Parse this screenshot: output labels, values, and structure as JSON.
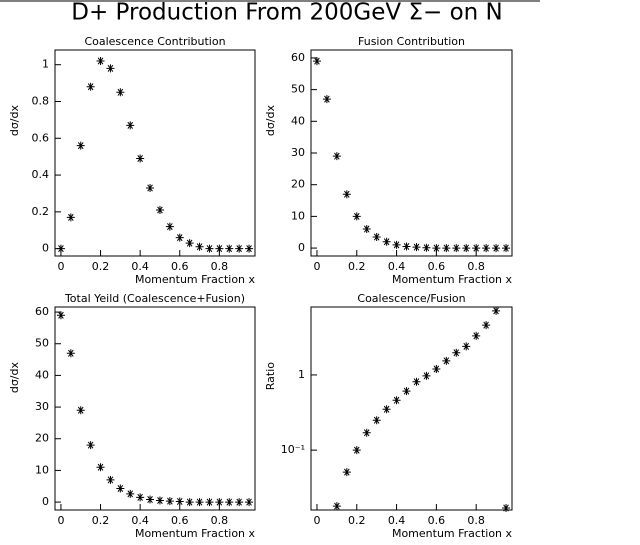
{
  "title": "D+ Production From 200GeV Σ− on N",
  "chart_data": [
    {
      "type": "scatter",
      "title": "Coalescence Contribution",
      "xlabel": "Momentum Fraction x",
      "ylabel": "dσ/dx",
      "marker": "*",
      "color": "#000000",
      "x": [
        0,
        0.05,
        0.1,
        0.15,
        0.2,
        0.25,
        0.3,
        0.35,
        0.4,
        0.45,
        0.5,
        0.55,
        0.6,
        0.65,
        0.7,
        0.75,
        0.8,
        0.85,
        0.9,
        0.95
      ],
      "values": [
        0,
        0.17,
        0.56,
        0.88,
        1.02,
        0.98,
        0.85,
        0.67,
        0.49,
        0.33,
        0.21,
        0.12,
        0.06,
        0.03,
        0.01,
        0,
        0,
        0,
        0,
        0
      ],
      "xlim": [
        -0.03,
        0.98
      ],
      "ylim": [
        -0.04,
        1.08
      ],
      "xticks": [
        0,
        0.2,
        0.4,
        0.6,
        0.8
      ],
      "yticks": [
        0,
        0.2,
        0.4,
        0.6,
        0.8,
        1
      ]
    },
    {
      "type": "scatter",
      "title": "Fusion Contribution",
      "xlabel": "Momentum Fraction x",
      "ylabel": "dσ/dx",
      "marker": "*",
      "color": "#000000",
      "x": [
        0,
        0.05,
        0.1,
        0.15,
        0.2,
        0.25,
        0.3,
        0.35,
        0.4,
        0.45,
        0.5,
        0.55,
        0.6,
        0.65,
        0.7,
        0.75,
        0.8,
        0.85,
        0.9,
        0.95
      ],
      "values": [
        59,
        47,
        29,
        17,
        10,
        6,
        3.5,
        2,
        1,
        0.5,
        0.3,
        0.1,
        0,
        0,
        0,
        0,
        0,
        0,
        0,
        0
      ],
      "xlim": [
        -0.03,
        0.98
      ],
      "ylim": [
        -2.5,
        62.5
      ],
      "xticks": [
        0,
        0.2,
        0.4,
        0.6,
        0.8
      ],
      "yticks": [
        0,
        10,
        20,
        30,
        40,
        50,
        60
      ]
    },
    {
      "type": "scatter",
      "title": "Total Yeild (Coalescence+Fusion)",
      "xlabel": "Momentum Fraction x",
      "ylabel": "dσ/dx",
      "marker": "*",
      "color": "#000000",
      "x": [
        0,
        0.05,
        0.1,
        0.15,
        0.2,
        0.25,
        0.3,
        0.35,
        0.4,
        0.45,
        0.5,
        0.55,
        0.6,
        0.65,
        0.7,
        0.75,
        0.8,
        0.85,
        0.9,
        0.95
      ],
      "values": [
        59,
        47,
        29,
        18,
        11,
        7,
        4.3,
        2.6,
        1.5,
        0.8,
        0.5,
        0.3,
        0.2,
        0,
        0,
        0,
        0,
        0,
        0,
        0
      ],
      "xlim": [
        -0.03,
        0.98
      ],
      "ylim": [
        -2.5,
        61.6
      ],
      "xticks": [
        0,
        0.2,
        0.4,
        0.6,
        0.8
      ],
      "yticks": [
        0,
        10,
        20,
        30,
        40,
        50,
        60
      ]
    },
    {
      "type": "scatter",
      "title": "Coalescence/Fusion",
      "xlabel": "Momentum Fraction x",
      "ylabel": "Ratio",
      "marker": "*",
      "color": "#000000",
      "log_y": true,
      "x": [
        0.1,
        0.15,
        0.2,
        0.25,
        0.3,
        0.35,
        0.4,
        0.45,
        0.5,
        0.55,
        0.6,
        0.65,
        0.7,
        0.75,
        0.8,
        0.85,
        0.9,
        0.95
      ],
      "values": [
        0.018,
        0.051,
        0.1,
        0.17,
        0.25,
        0.35,
        0.46,
        0.61,
        0.81,
        0.97,
        1.2,
        1.54,
        1.97,
        2.4,
        3.3,
        4.6,
        7.1,
        0.017
      ],
      "xlim": [
        -0.03,
        0.98
      ],
      "ylim": [
        0.016,
        8
      ],
      "xticks": [
        0,
        0.2,
        0.4,
        0.6,
        0.8
      ],
      "yticks": [
        {
          "value": 0.1,
          "label": "10⁻¹"
        },
        1
      ]
    }
  ]
}
